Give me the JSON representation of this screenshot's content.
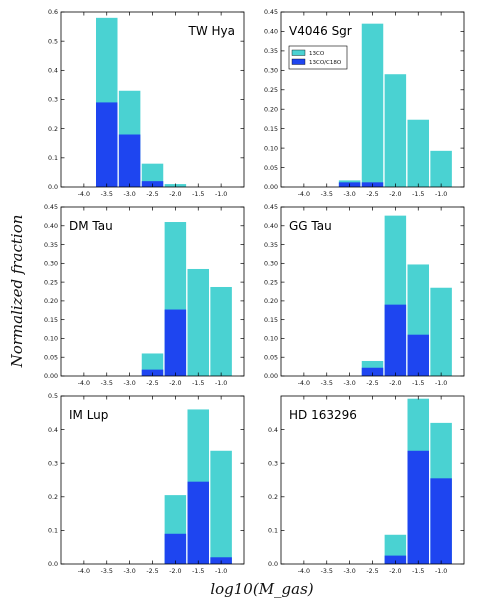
{
  "figure": {
    "ylabel": "Normalized fraction",
    "xlabel": "log10(M_gas)",
    "colors": {
      "13CO": "#4ad2d2",
      "13CO/C18O": "#1e45f0"
    },
    "legend": [
      "13CO",
      "13CO/C18O"
    ],
    "legend_placement": "upper-left of V4046 Sgr panel"
  },
  "chart_data": [
    {
      "type": "bar",
      "stacked": "overlay",
      "title": "TW Hya",
      "x_ticks": [
        "-4.0",
        "-3.5",
        "-3.0",
        "-2.5",
        "-2.0",
        "-1.5",
        "-1.0"
      ],
      "y_ticks": [
        "0.0",
        "0.1",
        "0.2",
        "0.3",
        "0.4",
        "0.5",
        "0.6"
      ],
      "ylim": [
        0,
        0.6
      ],
      "xlim": [
        -4.5,
        -0.5
      ],
      "categories": [
        -3.5,
        -3.0,
        -2.5,
        -2.0
      ],
      "series": [
        {
          "name": "13CO",
          "values": [
            0.58,
            0.33,
            0.08,
            0.01
          ]
        },
        {
          "name": "13CO/C18O",
          "values": [
            0.29,
            0.18,
            0.02,
            0.0
          ]
        }
      ]
    },
    {
      "type": "bar",
      "stacked": "overlay",
      "title": "V4046 Sgr",
      "x_ticks": [
        "-4.0",
        "-3.5",
        "-3.0",
        "-2.5",
        "-2.0",
        "-1.5",
        "-1.0"
      ],
      "y_ticks": [
        "0.00",
        "0.05",
        "0.10",
        "0.15",
        "0.20",
        "0.25",
        "0.30",
        "0.35",
        "0.40",
        "0.45"
      ],
      "ylim": [
        0,
        0.45
      ],
      "xlim": [
        -4.5,
        -0.5
      ],
      "categories": [
        -3.0,
        -2.5,
        -2.0,
        -1.5,
        -1.0
      ],
      "series": [
        {
          "name": "13CO",
          "values": [
            0.017,
            0.42,
            0.29,
            0.173,
            0.093
          ]
        },
        {
          "name": "13CO/C18O",
          "values": [
            0.012,
            0.012,
            0.0,
            0.0,
            0.0
          ]
        }
      ],
      "legend": true
    },
    {
      "type": "bar",
      "stacked": "overlay",
      "title": "DM Tau",
      "x_ticks": [
        "-4.0",
        "-3.5",
        "-3.0",
        "-2.5",
        "-2.0",
        "-1.5",
        "-1.0"
      ],
      "y_ticks": [
        "0.00",
        "0.05",
        "0.10",
        "0.15",
        "0.20",
        "0.25",
        "0.30",
        "0.35",
        "0.40",
        "0.45"
      ],
      "ylim": [
        0,
        0.45
      ],
      "xlim": [
        -4.5,
        -0.5
      ],
      "categories": [
        -2.5,
        -2.0,
        -1.5,
        -1.0
      ],
      "series": [
        {
          "name": "13CO",
          "values": [
            0.06,
            0.41,
            0.285,
            0.237
          ]
        },
        {
          "name": "13CO/C18O",
          "values": [
            0.017,
            0.177,
            0.0,
            0.0
          ]
        }
      ]
    },
    {
      "type": "bar",
      "stacked": "overlay",
      "title": "GG Tau",
      "x_ticks": [
        "-4.0",
        "-3.5",
        "-3.0",
        "-2.5",
        "-2.0",
        "-1.5",
        "-1.0"
      ],
      "y_ticks": [
        "0.00",
        "0.05",
        "0.10",
        "0.15",
        "0.20",
        "0.25",
        "0.30",
        "0.35",
        "0.40",
        "0.45"
      ],
      "ylim": [
        0,
        0.45
      ],
      "xlim": [
        -4.5,
        -0.5
      ],
      "categories": [
        -2.5,
        -2.0,
        -1.5,
        -1.0
      ],
      "series": [
        {
          "name": "13CO",
          "values": [
            0.04,
            0.427,
            0.297,
            0.235
          ]
        },
        {
          "name": "13CO/C18O",
          "values": [
            0.022,
            0.19,
            0.11,
            0.0
          ]
        }
      ]
    },
    {
      "type": "bar",
      "stacked": "overlay",
      "title": "IM Lup",
      "x_ticks": [
        "-4.0",
        "-3.5",
        "-3.0",
        "-2.5",
        "-2.0",
        "-1.5",
        "-1.0"
      ],
      "y_ticks": [
        "0.0",
        "0.1",
        "0.2",
        "0.3",
        "0.4",
        "0.5"
      ],
      "ylim": [
        0,
        0.5
      ],
      "xlim": [
        -4.5,
        -0.5
      ],
      "categories": [
        -2.0,
        -1.5,
        -1.0
      ],
      "series": [
        {
          "name": "13CO",
          "values": [
            0.205,
            0.46,
            0.337
          ]
        },
        {
          "name": "13CO/C18O",
          "values": [
            0.09,
            0.245,
            0.02
          ]
        }
      ]
    },
    {
      "type": "bar",
      "stacked": "overlay",
      "title": "HD 163296",
      "x_ticks": [
        "-4.0",
        "-3.5",
        "-3.0",
        "-2.5",
        "-2.0",
        "-1.5",
        "-1.0"
      ],
      "y_ticks": [
        "0.0",
        "0.1",
        "0.2",
        "0.3",
        "0.4"
      ],
      "ylim": [
        0,
        0.5
      ],
      "xlim": [
        -4.5,
        -0.5
      ],
      "categories": [
        -2.0,
        -1.5,
        -1.0
      ],
      "series": [
        {
          "name": "13CO",
          "values": [
            0.087,
            0.492,
            0.42
          ]
        },
        {
          "name": "13CO/C18O",
          "values": [
            0.025,
            0.337,
            0.255
          ]
        }
      ]
    }
  ]
}
